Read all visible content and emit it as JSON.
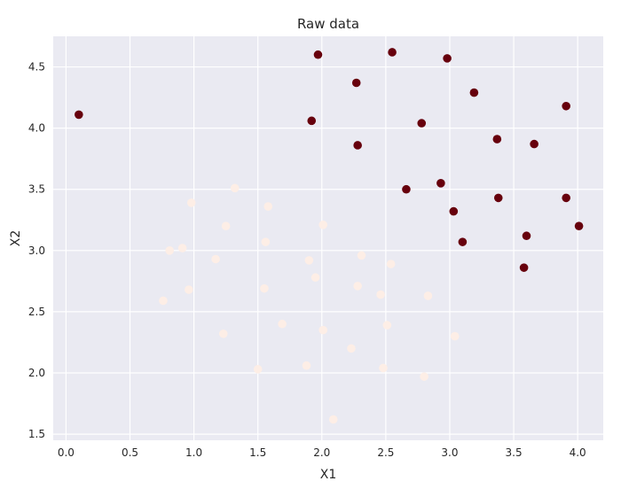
{
  "chart_data": {
    "type": "scatter",
    "title": "Raw data",
    "xlabel": "X1",
    "ylabel": "X2",
    "xlim": [
      -0.1,
      4.2
    ],
    "ylim": [
      1.45,
      4.75
    ],
    "xticks": [
      "0.0",
      "0.5",
      "1.0",
      "1.5",
      "2.0",
      "2.5",
      "3.0",
      "3.5",
      "4.0"
    ],
    "yticks": [
      "1.5",
      "2.0",
      "2.5",
      "3.0",
      "3.5",
      "4.0",
      "4.5"
    ],
    "grid": true,
    "background": "#eaeaf2",
    "series": [
      {
        "color": "#fdeee6",
        "points": [
          [
            0.76,
            2.59
          ],
          [
            0.81,
            3.0
          ],
          [
            0.91,
            3.02
          ],
          [
            0.96,
            2.68
          ],
          [
            0.98,
            3.39
          ],
          [
            1.17,
            2.93
          ],
          [
            1.23,
            2.32
          ],
          [
            1.25,
            3.2
          ],
          [
            1.32,
            3.51
          ],
          [
            1.5,
            2.03
          ],
          [
            1.55,
            2.69
          ],
          [
            1.56,
            3.07
          ],
          [
            1.58,
            3.36
          ],
          [
            1.69,
            2.4
          ],
          [
            1.88,
            2.06
          ],
          [
            1.9,
            2.92
          ],
          [
            1.95,
            2.78
          ],
          [
            2.01,
            3.21
          ],
          [
            2.01,
            2.35
          ],
          [
            2.09,
            1.62
          ],
          [
            2.23,
            2.2
          ],
          [
            2.28,
            2.71
          ],
          [
            2.31,
            2.96
          ],
          [
            2.46,
            2.64
          ],
          [
            2.48,
            2.04
          ],
          [
            2.51,
            2.39
          ],
          [
            2.54,
            2.89
          ],
          [
            2.8,
            1.97
          ],
          [
            2.83,
            2.63
          ],
          [
            3.04,
            2.3
          ]
        ]
      },
      {
        "color": "#67000d",
        "points": [
          [
            0.1,
            4.11
          ],
          [
            1.92,
            4.06
          ],
          [
            1.97,
            4.6
          ],
          [
            2.27,
            4.37
          ],
          [
            2.28,
            3.86
          ],
          [
            2.55,
            4.62
          ],
          [
            2.66,
            3.5
          ],
          [
            2.78,
            4.04
          ],
          [
            2.93,
            3.55
          ],
          [
            2.98,
            4.57
          ],
          [
            3.03,
            3.32
          ],
          [
            3.1,
            3.07
          ],
          [
            3.19,
            4.29
          ],
          [
            3.37,
            3.91
          ],
          [
            3.38,
            3.43
          ],
          [
            3.58,
            2.86
          ],
          [
            3.6,
            3.12
          ],
          [
            3.66,
            3.87
          ],
          [
            3.91,
            4.18
          ],
          [
            3.91,
            3.43
          ],
          [
            4.01,
            3.2
          ]
        ]
      }
    ]
  }
}
